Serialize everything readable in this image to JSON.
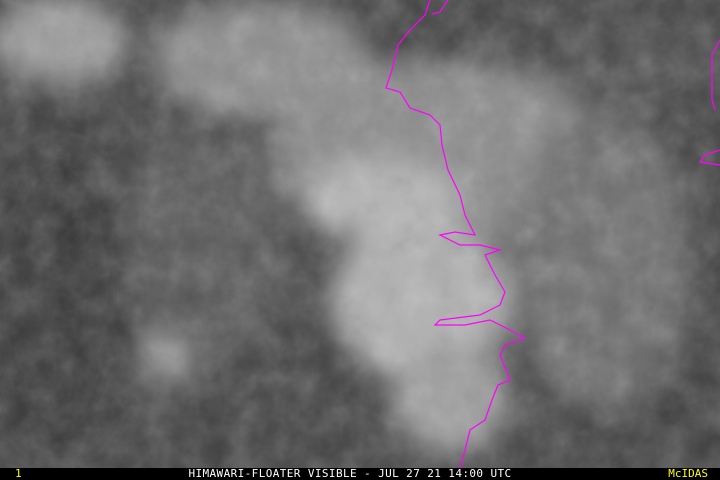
{
  "image": {
    "description_type": "satellite-visible-imagery",
    "coastline_color": "#ff00ff",
    "label_color": "#ffff00"
  },
  "footer": {
    "frame_number": "1",
    "title": "HIMAWARI-FLOATER VISIBLE - JUL 27 21 14:00 UTC",
    "brand": "McIDAS"
  }
}
